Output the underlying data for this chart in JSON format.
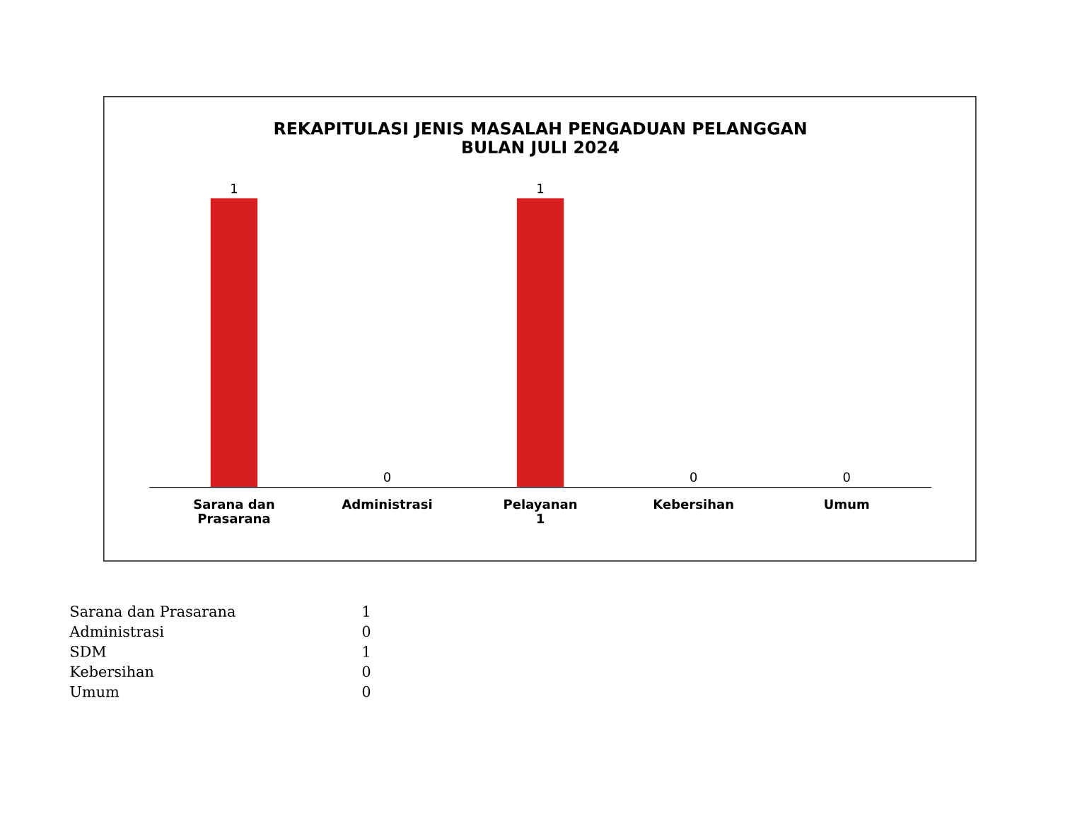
{
  "chart_data": {
    "type": "bar",
    "title": "REKAPITULASI JENIS MASALAH PENGADUAN PELANGGAN\nBULAN JULI 2024",
    "categories": [
      "Sarana dan\nPrasarana",
      "Administrasi",
      "Pelayanan\n1",
      "Kebersihan",
      "Umum"
    ],
    "values": [
      1,
      0,
      1,
      0,
      0
    ],
    "color": "#d81e1e",
    "data_labels": true,
    "grid": false,
    "legend": false,
    "annotations": [
      "Sarana dan Prasarana",
      "1",
      "Administrasi",
      "0",
      "SDM",
      "1",
      "Kebersihan",
      "0",
      "Umum",
      "0"
    ]
  }
}
